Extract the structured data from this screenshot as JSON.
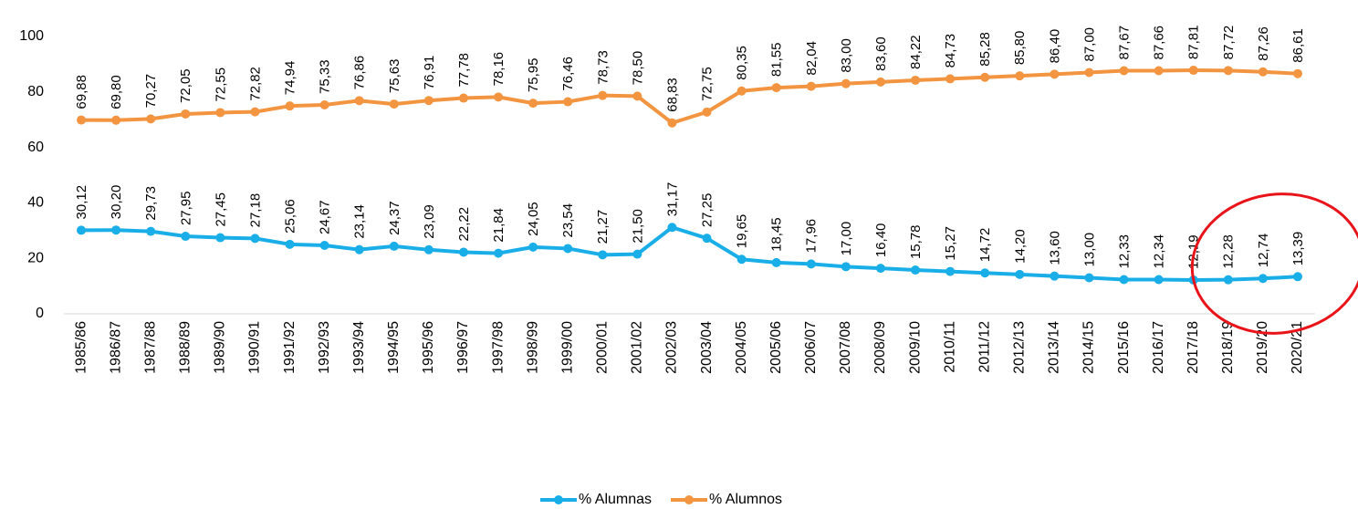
{
  "chart_data": {
    "type": "line",
    "categories": [
      "1985/86",
      "1986/87",
      "1987/88",
      "1988/89",
      "1989/90",
      "1990/91",
      "1991/92",
      "1992/93",
      "1993/94",
      "1994/95",
      "1995/96",
      "1996/97",
      "1997/98",
      "1998/99",
      "1999/00",
      "2000/01",
      "2001/02",
      "2002/03",
      "2003/04",
      "2004/05",
      "2005/06",
      "2006/07",
      "2007/08",
      "2008/09",
      "2009/10",
      "2010/11",
      "2011/12",
      "2012/13",
      "2013/14",
      "2014/15",
      "2015/16",
      "2016/17",
      "2017/18",
      "2018/19",
      "2019/20",
      "2020/21"
    ],
    "series": [
      {
        "name": "% Alumnas",
        "color": "#1aaee8",
        "values": [
          30.12,
          30.2,
          29.73,
          27.95,
          27.45,
          27.18,
          25.06,
          24.67,
          23.14,
          24.37,
          23.09,
          22.22,
          21.84,
          24.05,
          23.54,
          21.27,
          21.5,
          31.17,
          27.25,
          19.65,
          18.45,
          17.96,
          17.0,
          16.4,
          15.78,
          15.27,
          14.72,
          14.2,
          13.6,
          13.0,
          12.33,
          12.34,
          12.19,
          12.28,
          12.74,
          13.39
        ],
        "value_labels": [
          "30,12",
          "30,20",
          "29,73",
          "27,95",
          "27,45",
          "27,18",
          "25,06",
          "24,67",
          "23,14",
          "24,37",
          "23,09",
          "22,22",
          "21,84",
          "24,05",
          "23,54",
          "21,27",
          "21,50",
          "31,17",
          "27,25",
          "19,65",
          "18,45",
          "17,96",
          "17,00",
          "16,40",
          "15,78",
          "15,27",
          "14,72",
          "14,20",
          "13,60",
          "13,00",
          "12,33",
          "12,34",
          "12,19",
          "12,28",
          "12,74",
          "13,39"
        ]
      },
      {
        "name": "% Alumnos",
        "color": "#f39440",
        "values": [
          69.88,
          69.8,
          70.27,
          72.05,
          72.55,
          72.82,
          74.94,
          75.33,
          76.86,
          75.63,
          76.91,
          77.78,
          78.16,
          75.95,
          76.46,
          78.73,
          78.5,
          68.83,
          72.75,
          80.35,
          81.55,
          82.04,
          83.0,
          83.6,
          84.22,
          84.73,
          85.28,
          85.8,
          86.4,
          87.0,
          87.67,
          87.66,
          87.81,
          87.72,
          87.26,
          86.61
        ],
        "value_labels": [
          "69,88",
          "69,80",
          "70,27",
          "72,05",
          "72,55",
          "72,82",
          "74,94",
          "75,33",
          "76,86",
          "75,63",
          "76,91",
          "77,78",
          "78,16",
          "75,95",
          "76,46",
          "78,73",
          "78,50",
          "68,83",
          "72,75",
          "80,35",
          "81,55",
          "82,04",
          "83,00",
          "83,60",
          "84,22",
          "84,73",
          "85,28",
          "85,80",
          "86,40",
          "87,00",
          "87,67",
          "87,66",
          "87,81",
          "87,72",
          "87,26",
          "86,61"
        ]
      }
    ],
    "ylim": [
      0,
      100
    ],
    "yticks": [
      0,
      20,
      40,
      60,
      80,
      100
    ],
    "grid": false,
    "legend": "bottom"
  }
}
